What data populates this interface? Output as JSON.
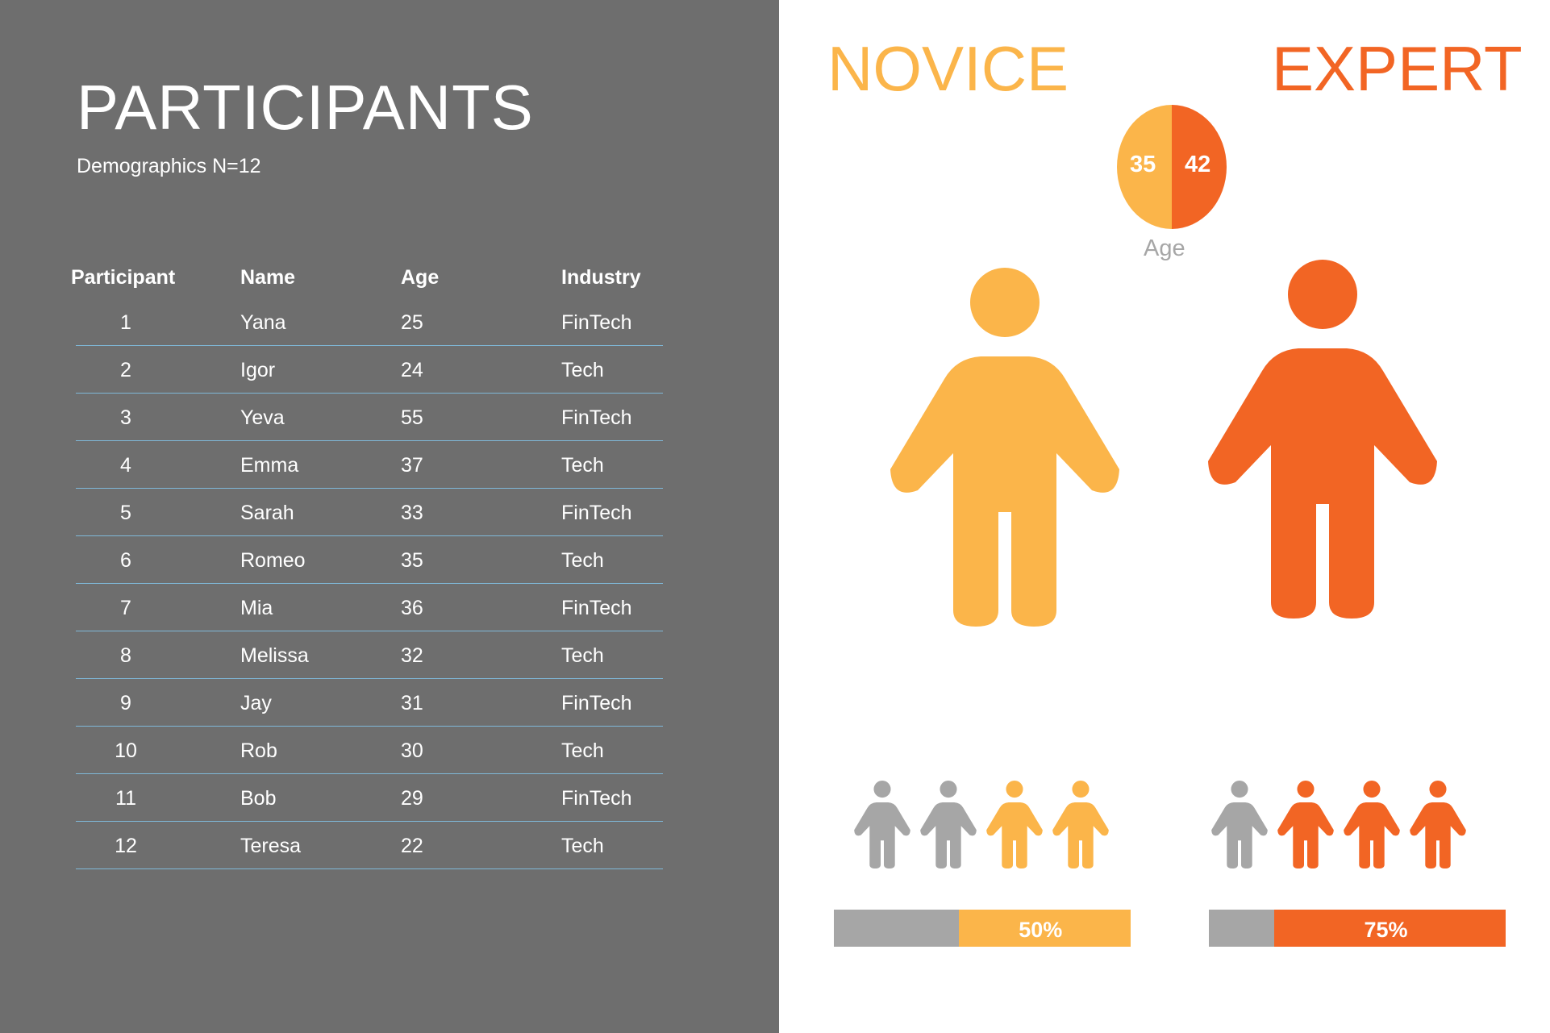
{
  "participants_panel": {
    "title": "PARTICIPANTS",
    "subtitle": "Demographics N=12",
    "columns": [
      "Participant",
      "Name",
      "Age",
      "Industry"
    ],
    "rows": [
      {
        "participant": "1",
        "name": "Yana",
        "age": "25",
        "industry": "FinTech"
      },
      {
        "participant": "2",
        "name": "Igor",
        "age": "24",
        "industry": "Tech"
      },
      {
        "participant": "3",
        "name": "Yeva",
        "age": "55",
        "industry": "FinTech"
      },
      {
        "participant": "4",
        "name": "Emma",
        "age": "37",
        "industry": "Tech"
      },
      {
        "participant": "5",
        "name": "Sarah",
        "age": "33",
        "industry": "FinTech"
      },
      {
        "participant": "6",
        "name": "Romeo",
        "age": "35",
        "industry": "Tech"
      },
      {
        "participant": "7",
        "name": "Mia",
        "age": "36",
        "industry": "FinTech"
      },
      {
        "participant": "8",
        "name": "Melissa",
        "age": "32",
        "industry": "Tech"
      },
      {
        "participant": "9",
        "name": "Jay",
        "age": "31",
        "industry": "FinTech"
      },
      {
        "participant": "10",
        "name": "Rob",
        "age": "30",
        "industry": "Tech"
      },
      {
        "participant": "11",
        "name": "Bob",
        "age": "29",
        "industry": "FinTech"
      },
      {
        "participant": "12",
        "name": "Teresa",
        "age": "22",
        "industry": "Tech"
      }
    ]
  },
  "novice": {
    "heading": "NOVICE",
    "age": "35",
    "percent_label": "50%",
    "percent_value": 0.5,
    "icons_highlighted": 2,
    "icons_total": 4,
    "color": "#fbb54a"
  },
  "expert": {
    "heading": "EXPERT",
    "age": "42",
    "percent_label": "75%",
    "percent_value": 0.75,
    "icons_highlighted": 3,
    "icons_total": 4,
    "color": "#f26524"
  },
  "age_label": "Age",
  "neutral_color": "#a6a6a6",
  "icons": {
    "large_figure": "person-icon",
    "small_figure": "person-icon"
  }
}
